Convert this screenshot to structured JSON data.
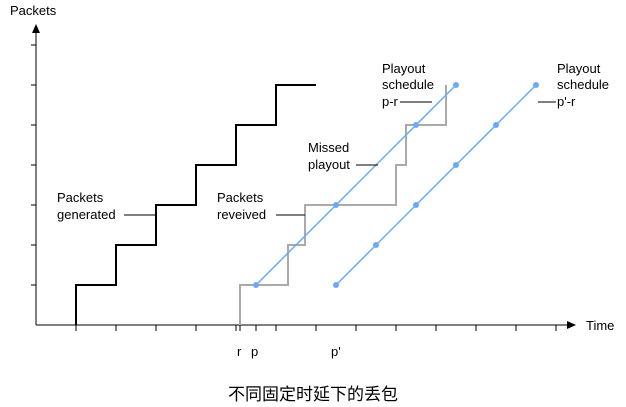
{
  "axes": {
    "y_label": "Packets",
    "x_label": "Time",
    "x_markers": [
      "r",
      "p",
      "p'"
    ]
  },
  "annotations": {
    "generated": [
      "Packets",
      "generated"
    ],
    "received": [
      "Packets",
      "reveived"
    ],
    "missed": [
      "Missed",
      "playout"
    ],
    "schedule_r": [
      "Playout",
      "schedule",
      "p-r"
    ],
    "schedule_rp": [
      "Playout",
      "schedule",
      "p'-r"
    ]
  },
  "caption": "不同固定时延下的丢包",
  "colors": {
    "generated": "#000000",
    "received": "#aaaaaa",
    "schedule": "#6aaaf5",
    "axis": "#000000"
  }
}
